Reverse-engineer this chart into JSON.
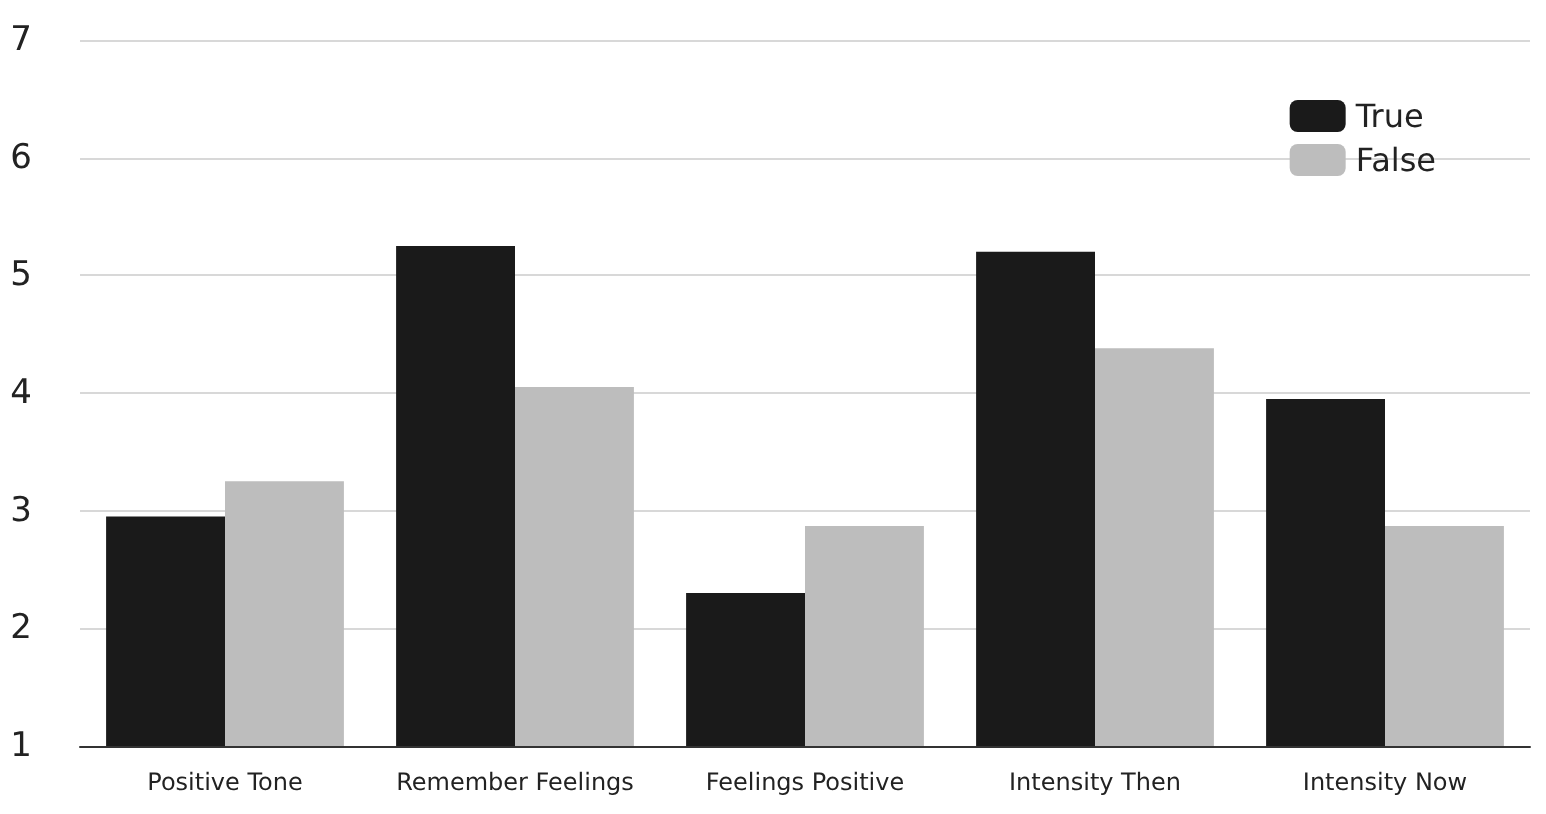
{
  "chart_data": {
    "type": "bar",
    "categories": [
      "Positive Tone",
      "Remember Feelings",
      "Feelings Positive",
      "Intensity Then",
      "Intensity Now"
    ],
    "series": [
      {
        "name": "True",
        "color": "#1a1a1a",
        "values": [
          2.95,
          5.25,
          2.3,
          5.2,
          3.95
        ]
      },
      {
        "name": "False",
        "color": "#bdbdbd",
        "values": [
          3.25,
          4.05,
          2.87,
          4.38,
          2.87
        ]
      }
    ],
    "ylim": [
      1,
      7
    ],
    "yticks": [
      1,
      2,
      3,
      4,
      5,
      6,
      7
    ],
    "grid": "y",
    "legend": "top right"
  }
}
